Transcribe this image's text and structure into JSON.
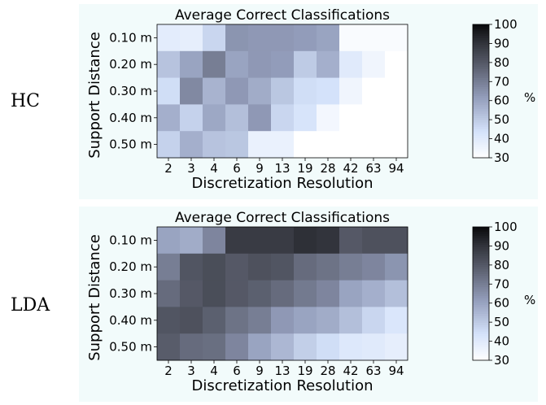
{
  "chart_data": [
    {
      "type": "heatmap",
      "row_label": "HC",
      "title": "Average Correct Classifications",
      "xlabel": "Discretization Resolution",
      "ylabel": "Support Distance",
      "x_categories": [
        "2",
        "3",
        "4",
        "6",
        "9",
        "13",
        "19",
        "28",
        "42",
        "63",
        "94"
      ],
      "y_categories": [
        "0.10 m",
        "0.20 m",
        "0.30 m",
        "0.40 m",
        "0.50 m"
      ],
      "values": [
        [
          39,
          38,
          47,
          64,
          63,
          63,
          62,
          60,
          32,
          32,
          32
        ],
        [
          52,
          60,
          70,
          60,
          63,
          62,
          50,
          57,
          40,
          35,
          30
        ],
        [
          45,
          67,
          56,
          63,
          58,
          51,
          45,
          44,
          35,
          30,
          30
        ],
        [
          57,
          48,
          59,
          53,
          63,
          47,
          43,
          34,
          30,
          30,
          30
        ],
        [
          48,
          57,
          52,
          51,
          37,
          37,
          30,
          30,
          30,
          30,
          30
        ]
      ],
      "colorbar": {
        "min": 30,
        "max": 100,
        "ticks": [
          30,
          40,
          50,
          60,
          70,
          80,
          90,
          100
        ],
        "unit": "%"
      }
    },
    {
      "type": "heatmap",
      "row_label": "LDA",
      "title": "Average Correct Classifications",
      "xlabel": "Discretization Resolution",
      "ylabel": "Support Distance",
      "x_categories": [
        "2",
        "3",
        "4",
        "6",
        "9",
        "13",
        "19",
        "28",
        "42",
        "63",
        "94"
      ],
      "y_categories": [
        "0.10 m",
        "0.20 m",
        "0.30 m",
        "0.40 m",
        "0.50 m"
      ],
      "values": [
        [
          60,
          58,
          68,
          88,
          88,
          88,
          91,
          90,
          80,
          82,
          82
        ],
        [
          70,
          81,
          83,
          80,
          82,
          81,
          75,
          73,
          70,
          68,
          64
        ],
        [
          75,
          80,
          83,
          80,
          78,
          75,
          71,
          68,
          60,
          57,
          53
        ],
        [
          81,
          82,
          78,
          73,
          70,
          63,
          60,
          58,
          53,
          47,
          42
        ],
        [
          79,
          75,
          74,
          68,
          60,
          55,
          49,
          45,
          41,
          40,
          38
        ]
      ],
      "colorbar": {
        "min": 30,
        "max": 100,
        "ticks": [
          30,
          40,
          50,
          60,
          70,
          80,
          90,
          100
        ],
        "unit": "%"
      }
    }
  ]
}
